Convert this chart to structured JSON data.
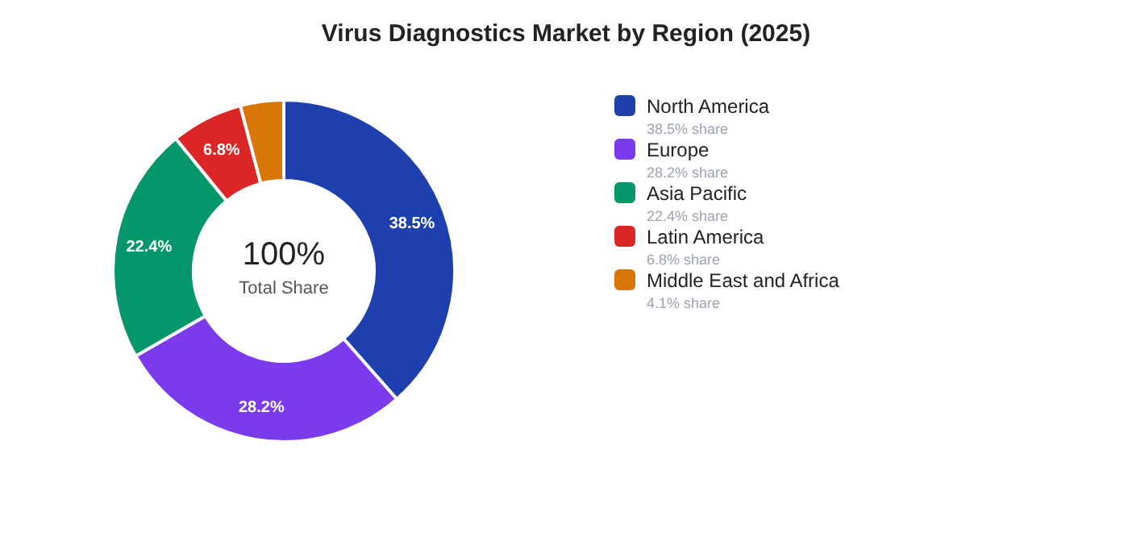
{
  "chart_data": {
    "type": "donut",
    "title": "Virus Diagnostics Market by Region (2025)",
    "categories": [
      "North America",
      "Europe",
      "Asia Pacific",
      "Latin America",
      "Middle East and Africa"
    ],
    "values": [
      38.5,
      28.2,
      22.4,
      6.8,
      4.1
    ],
    "colors": [
      "#1e40af",
      "#7c3aed",
      "#059669",
      "#dc2626",
      "#d97706"
    ],
    "value_labels": [
      "38.5%",
      "28.2%",
      "22.4%",
      "6.8%",
      null
    ],
    "annotations": [
      "100%",
      "Total Share",
      "38.5% share",
      "28.2% share",
      "22.4% share",
      "6.8% share",
      "4.1% share"
    ],
    "legend": "right"
  }
}
